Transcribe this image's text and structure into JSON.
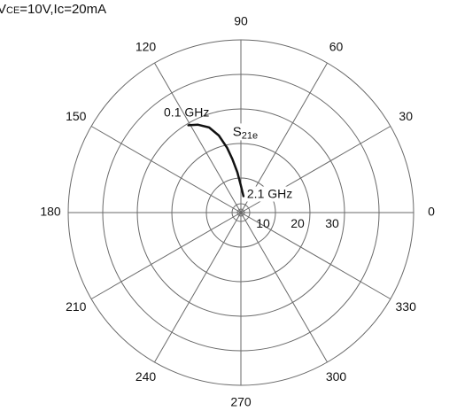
{
  "conditions": {
    "prefix": "V",
    "sub": "CE",
    "rest": "=10V,Ic=20mA"
  },
  "chart_data": {
    "type": "polar",
    "title": "",
    "radial_range": [
      0,
      50
    ],
    "radial_rings": [
      10,
      20,
      30,
      40,
      50
    ],
    "radial_tick_labels": [
      "10",
      "20",
      "30"
    ],
    "angular_ticks_deg": [
      0,
      30,
      60,
      90,
      120,
      150,
      180,
      210,
      240,
      270,
      300,
      330
    ],
    "angular_tick_labels": [
      "0",
      "30",
      "60",
      "90",
      "120",
      "150",
      "180",
      "210",
      "240",
      "270",
      "300",
      "330"
    ],
    "grid": true,
    "series": [
      {
        "name": "S21e",
        "name_main": "S",
        "name_sub": "21e",
        "color": "#111111",
        "points": [
          {
            "freq": "0.1 GHz",
            "angle": 121,
            "magnitude": 29.5
          },
          {
            "freq": "",
            "angle": 116,
            "magnitude": 28.3
          },
          {
            "freq": "",
            "angle": 110.5,
            "magnitude": 26.3
          },
          {
            "freq": "",
            "angle": 106,
            "magnitude": 23.2
          },
          {
            "freq": "",
            "angle": 102,
            "magnitude": 19.2
          },
          {
            "freq": "",
            "angle": 99,
            "magnitude": 15.6
          },
          {
            "freq": "",
            "angle": 95,
            "magnitude": 11.7
          },
          {
            "freq": "",
            "angle": 90.5,
            "magnitude": 8.1
          },
          {
            "freq": "2.1 GHz",
            "angle": 81,
            "magnitude": 4.8
          }
        ]
      }
    ],
    "annotations": [
      {
        "text": "0.1 GHz"
      },
      {
        "text": "2.1 GHz"
      }
    ]
  }
}
